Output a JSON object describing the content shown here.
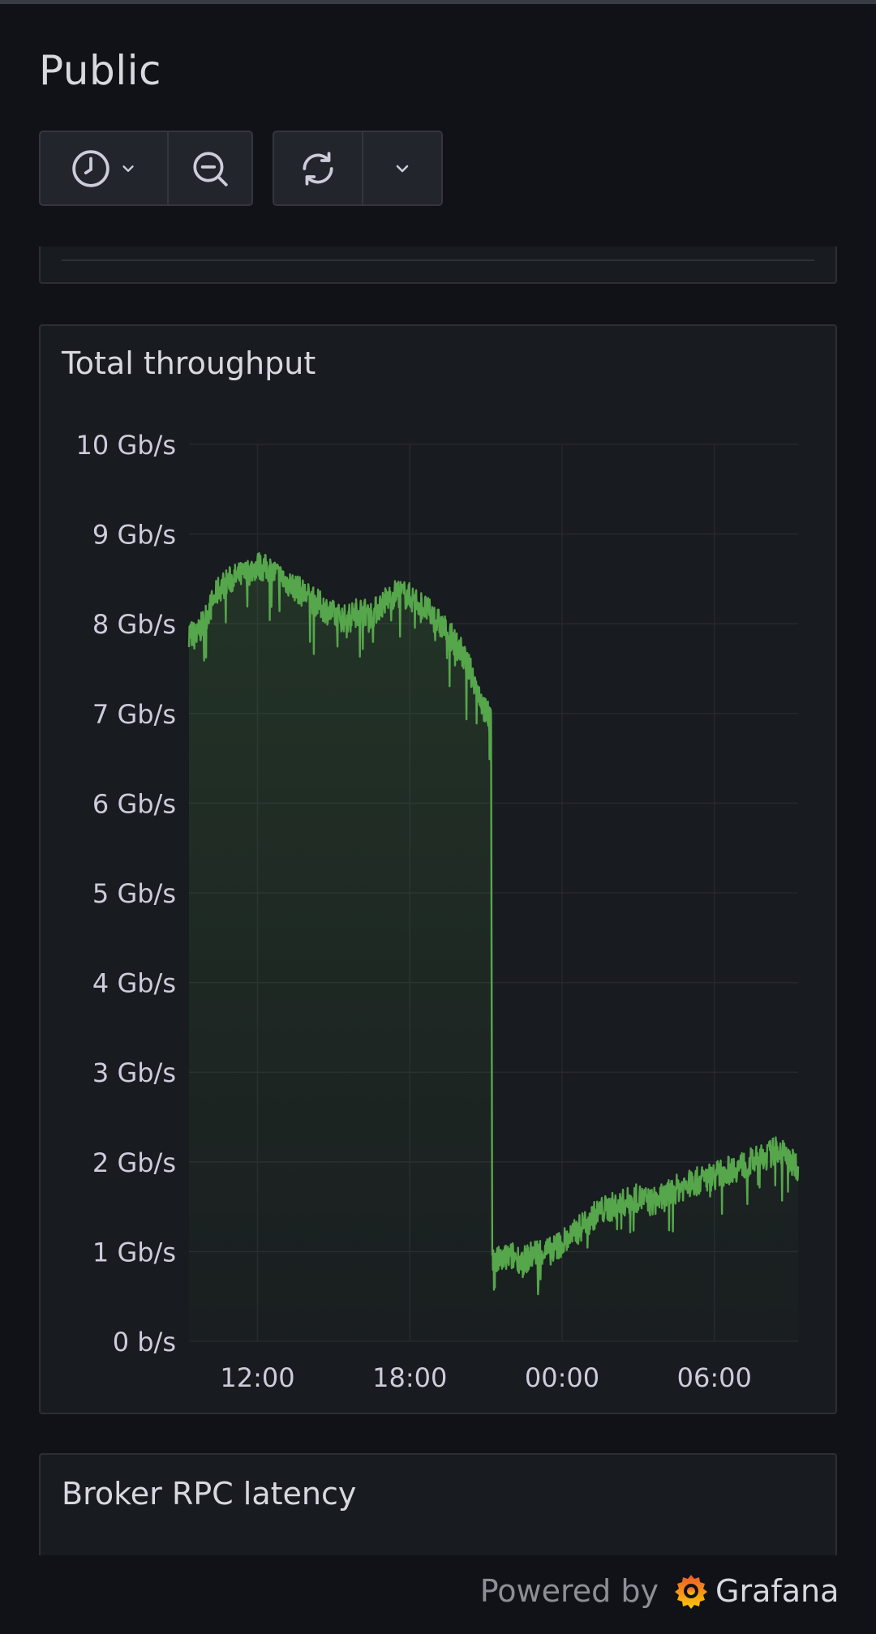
{
  "page": {
    "title": "Public"
  },
  "toolbar": {
    "time_picker_icon": "clock-icon",
    "time_picker_chevron": "chevron-down-icon",
    "zoom_out_icon": "zoom-out-icon",
    "refresh_icon": "refresh-icon",
    "refresh_interval_chevron": "chevron-down-icon"
  },
  "panels": {
    "throughput": {
      "title": "Total throughput"
    },
    "latency": {
      "title": "Broker RPC latency"
    }
  },
  "footer": {
    "powered_by": "Powered by",
    "brand": "Grafana"
  },
  "colors": {
    "series": "#56a64b",
    "background": "#111217",
    "panel": "#181b1f"
  },
  "chart_data": {
    "type": "area",
    "title": "Total throughput",
    "xlabel": "",
    "ylabel": "",
    "ylim": [
      0,
      10
    ],
    "yticks": [
      "0 b/s",
      "1 Gb/s",
      "2 Gb/s",
      "3 Gb/s",
      "4 Gb/s",
      "5 Gb/s",
      "6 Gb/s",
      "7 Gb/s",
      "8 Gb/s",
      "9 Gb/s",
      "10 Gb/s"
    ],
    "xticks": [
      {
        "label": "12:00",
        "hour": 12
      },
      {
        "label": "18:00",
        "hour": 18
      },
      {
        "label": "00:00",
        "hour": 24
      },
      {
        "label": "06:00",
        "hour": 30
      }
    ],
    "x_range_hours": [
      9.3,
      33.3
    ],
    "grid": true,
    "series": [
      {
        "color": "#56a64b",
        "x_hours": [
          9.3,
          9.6,
          10.0,
          10.5,
          11.0,
          11.5,
          12.0,
          12.5,
          13.0,
          13.5,
          14.0,
          14.5,
          15.0,
          15.5,
          16.0,
          16.5,
          17.0,
          17.5,
          18.0,
          18.5,
          19.0,
          19.5,
          20.0,
          20.5,
          21.0,
          21.2,
          21.25,
          21.5,
          22.0,
          22.5,
          23.0,
          23.5,
          24.0,
          24.5,
          25.0,
          25.5,
          26.0,
          26.5,
          27.0,
          27.5,
          28.0,
          28.5,
          29.0,
          29.5,
          30.0,
          30.5,
          31.0,
          31.5,
          32.0,
          32.5,
          33.0,
          33.3
        ],
        "values_gbps": [
          7.9,
          7.85,
          8.1,
          8.4,
          8.5,
          8.55,
          8.65,
          8.6,
          8.5,
          8.4,
          8.3,
          8.2,
          8.1,
          8.05,
          8.15,
          8.1,
          8.25,
          8.35,
          8.3,
          8.2,
          8.05,
          7.9,
          7.7,
          7.4,
          7.0,
          6.95,
          0.85,
          0.9,
          0.95,
          0.9,
          1.0,
          1.0,
          1.1,
          1.2,
          1.35,
          1.45,
          1.5,
          1.55,
          1.6,
          1.55,
          1.6,
          1.7,
          1.75,
          1.8,
          1.85,
          1.9,
          1.95,
          2.0,
          2.05,
          2.15,
          2.0,
          1.95
        ]
      }
    ]
  }
}
